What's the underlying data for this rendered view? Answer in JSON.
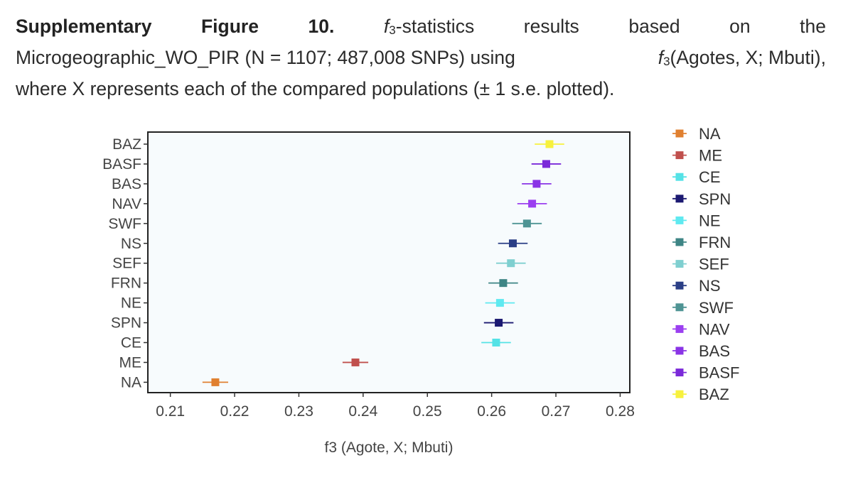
{
  "caption": {
    "w1": "Supplementary",
    "w2": "Figure",
    "w3": "10.",
    "f3a": "f",
    "f3a_sub": "3",
    "w4": "-statistics",
    "w5": "results",
    "w6": "based",
    "w7": "on",
    "w8": "the",
    "line2a": "Microgeographic_WO_PIR (N = 1107; 487,008 SNPs) using",
    "f3b": "f",
    "f3b_sub": "3",
    "line2b": "(Agotes, X; Mbuti),",
    "line3": "where X represents each of the compared populations (± 1 s.e. plotted)."
  },
  "chart_data": {
    "type": "scatter",
    "xlabel": "f3 (Agote, X; Mbuti)",
    "ylabel": "",
    "xlim": [
      0.2065,
      0.2815
    ],
    "x_ticks": [
      "0.21",
      "0.22",
      "0.23",
      "0.24",
      "0.25",
      "0.26",
      "0.27",
      "0.28"
    ],
    "x_tick_values": [
      0.21,
      0.22,
      0.23,
      0.24,
      0.25,
      0.26,
      0.27,
      0.28
    ],
    "grid": false,
    "legend_position": "right",
    "points": [
      {
        "label": "BAZ",
        "value": 0.269,
        "se": 0.0023,
        "color": "#f7f13d"
      },
      {
        "label": "BASF",
        "value": 0.2685,
        "se": 0.0023,
        "color": "#7b2ad9"
      },
      {
        "label": "BAS",
        "value": 0.267,
        "se": 0.0023,
        "color": "#8a34e6"
      },
      {
        "label": "NAV",
        "value": 0.2663,
        "se": 0.0023,
        "color": "#9b3ff0"
      },
      {
        "label": "SWF",
        "value": 0.2655,
        "se": 0.0023,
        "color": "#4f9494"
      },
      {
        "label": "NS",
        "value": 0.2633,
        "se": 0.0023,
        "color": "#2b3f86"
      },
      {
        "label": "SEF",
        "value": 0.263,
        "se": 0.0023,
        "color": "#7fcfd0"
      },
      {
        "label": "FRN",
        "value": 0.2618,
        "se": 0.0023,
        "color": "#3e8585"
      },
      {
        "label": "NE",
        "value": 0.2613,
        "se": 0.0023,
        "color": "#5fe9f0"
      },
      {
        "label": "SPN",
        "value": 0.2611,
        "se": 0.0023,
        "color": "#1c1a72"
      },
      {
        "label": "CE",
        "value": 0.2607,
        "se": 0.0023,
        "color": "#55e2e6"
      },
      {
        "label": "ME",
        "value": 0.2388,
        "se": 0.002,
        "color": "#c0504d"
      },
      {
        "label": "NA",
        "value": 0.217,
        "se": 0.002,
        "color": "#e08030"
      }
    ],
    "legend": [
      "NA",
      "ME",
      "CE",
      "SPN",
      "NE",
      "FRN",
      "SEF",
      "NS",
      "SWF",
      "NAV",
      "BAS",
      "BASF",
      "BAZ"
    ]
  }
}
